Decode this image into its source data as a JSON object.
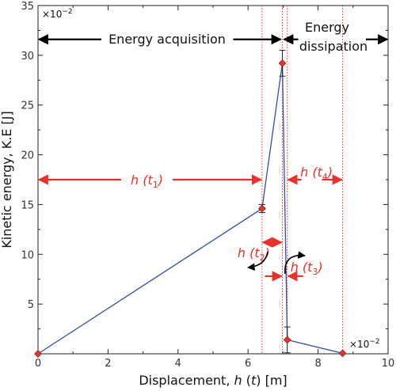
{
  "chart_data": {
    "type": "line",
    "xlabel": "Displacement, ",
    "xlabel_var": "h",
    "xlabel_arg": "t",
    "xlabel_unit": " [m]",
    "ylabel": "Kinetic energy, K.E [J]",
    "x_scale_label": "×10",
    "x_scale_exp": "−2",
    "y_scale_label": "×10",
    "y_scale_exp": "−2",
    "xlim": [
      0,
      10
    ],
    "ylim": [
      0,
      35
    ],
    "xticks": [
      0,
      2,
      4,
      6,
      8,
      10
    ],
    "yticks": [
      5,
      10,
      15,
      20,
      25,
      30,
      35
    ],
    "grid": false,
    "series": [
      {
        "color": "#2f4fa8",
        "x": [
          0,
          6.4,
          6.98,
          7.12,
          8.7
        ],
        "y": [
          0,
          14.6,
          29.2,
          1.4,
          0.05
        ],
        "error_low": [
          0,
          0.4,
          1.3,
          1.3,
          0
        ],
        "error_high": [
          0,
          0.4,
          1.3,
          1.3,
          0
        ]
      }
    ],
    "marker_color": "#e8312a",
    "phase_lines_x": [
      6.4,
      6.98,
      7.12,
      8.7
    ],
    "phase_line_color": "#e8312a",
    "phases": [
      {
        "label": "Energy acquisition",
        "x_start": 0,
        "x_end": 6.98
      },
      {
        "label_line1": "Energy",
        "label_line2": "dissipation",
        "x_start": 6.98,
        "x_end": 10
      }
    ],
    "annotations": [
      {
        "id": "t1",
        "var": "h",
        "sub": "1",
        "x_start": 0,
        "x_end": 6.4,
        "y": 17.5
      },
      {
        "id": "t4",
        "var": "h",
        "sub": "4",
        "x_start": 7.12,
        "x_end": 8.7,
        "y": 17.5
      },
      {
        "id": "t2",
        "var": "h",
        "sub": "2",
        "x_start": 6.4,
        "x_end": 6.98,
        "y": 11.2
      },
      {
        "id": "t3",
        "var": "h",
        "sub": "3",
        "x_start": 6.98,
        "x_end": 7.12,
        "y": 7.8
      }
    ],
    "annotation_color": "#e8312a"
  }
}
